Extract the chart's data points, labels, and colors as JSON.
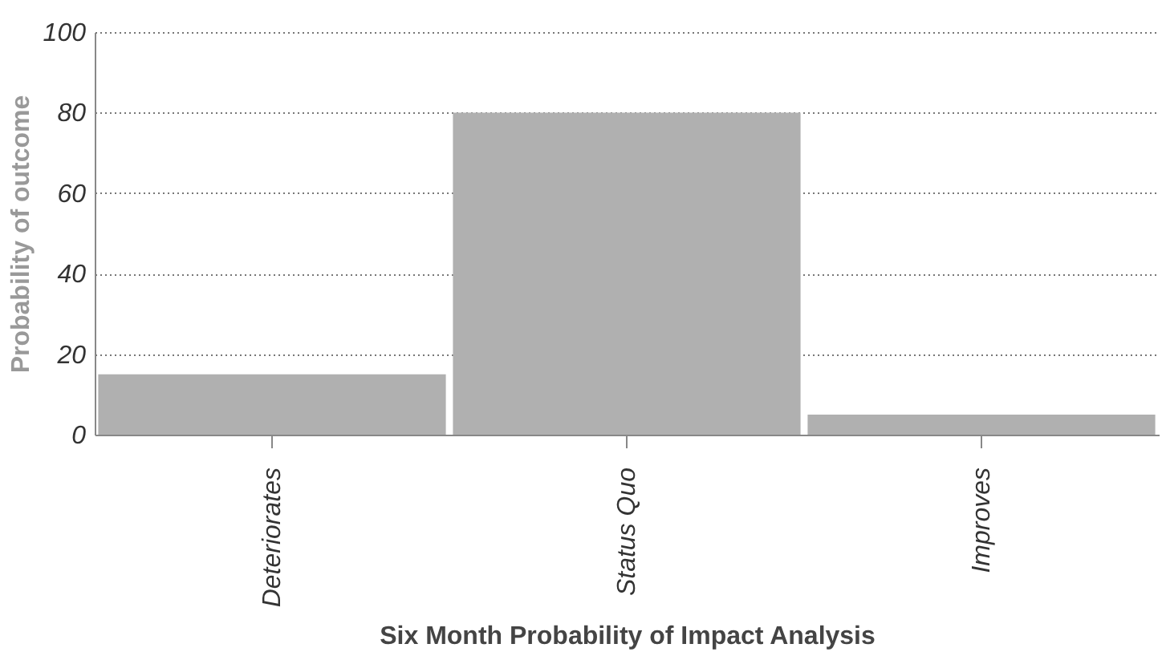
{
  "chart_data": {
    "type": "bar",
    "xlabel": "Six Month Probability of Impact Analysis",
    "ylabel": "Probability of outcome",
    "categories": [
      "Deteriorates",
      "Status Quo",
      "Improves"
    ],
    "values": [
      15,
      80,
      5
    ],
    "color": "#b0b0b0",
    "ylim": [
      0,
      100
    ],
    "yticks": [
      0,
      20,
      40,
      60,
      80,
      100
    ],
    "grid": "y"
  }
}
